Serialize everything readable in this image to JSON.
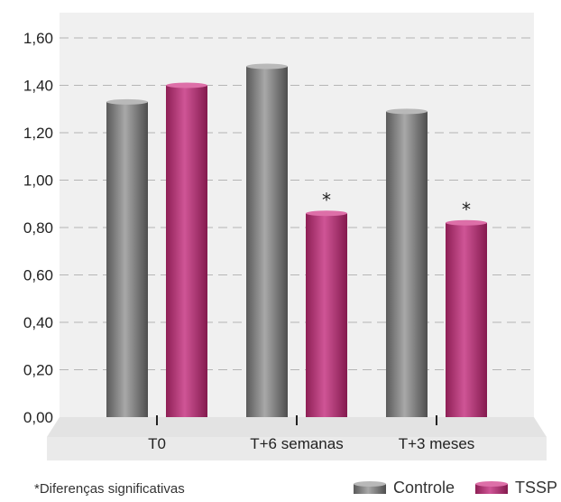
{
  "chart_data": {
    "type": "bar",
    "categories": [
      "T0",
      "T+6 semanas",
      "T+3 meses"
    ],
    "series": [
      {
        "name": "Controle",
        "values": [
          1.33,
          1.48,
          1.29
        ]
      },
      {
        "name": "TSSP",
        "values": [
          1.4,
          0.86,
          0.82
        ]
      }
    ],
    "ylim": [
      0,
      1.6
    ],
    "ticks": [
      "0,00",
      "0,20",
      "0,40",
      "0,60",
      "0,80",
      "1,00",
      "1,20",
      "1,40",
      "1,60"
    ],
    "tick_values": [
      0,
      0.2,
      0.4,
      0.6,
      0.8,
      1.0,
      1.2,
      1.4,
      1.6
    ],
    "annotations": [
      {
        "category_index": 1,
        "series_index": 1,
        "text": "*"
      },
      {
        "category_index": 2,
        "series_index": 1,
        "text": "*"
      }
    ],
    "footnote": "*Diferenças significativas",
    "grid": true,
    "legend_position": "bottom-right",
    "colors": {
      "Controle": "#7a7a7a",
      "TSSP": "#b0306e",
      "plot_bg": "#f0f0f0",
      "floor": "#e2e2e2"
    }
  }
}
